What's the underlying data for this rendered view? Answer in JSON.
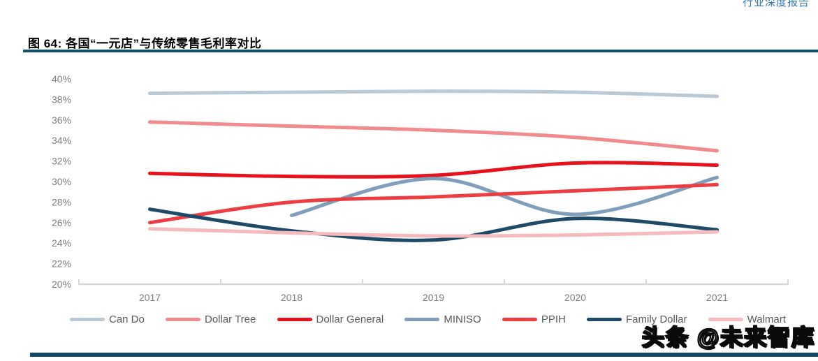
{
  "header": {
    "report_type": "行业深度报告"
  },
  "figure": {
    "title": "图 64: 各国“一元店”与传统零售毛利率对比"
  },
  "watermark": {
    "text": "头条 @未来智库"
  },
  "chart_data": {
    "type": "line",
    "line_style": "smooth",
    "x": [
      "2017",
      "2018",
      "2019",
      "2020",
      "2021"
    ],
    "x_axis_type": "category",
    "ylim": [
      20,
      40
    ],
    "ytick_step": 2,
    "ytick_suffix": "%",
    "grid": false,
    "legend_position": "bottom",
    "series": [
      {
        "name": "Can Do",
        "color": "#B9C9D5",
        "values": [
          38.6,
          38.7,
          38.8,
          38.7,
          38.3
        ]
      },
      {
        "name": "Dollar Tree",
        "color": "#F18C8E",
        "values": [
          35.8,
          35.4,
          35.0,
          34.3,
          33.0
        ]
      },
      {
        "name": "Dollar General",
        "color": "#E8131A",
        "values": [
          30.8,
          30.5,
          30.6,
          31.8,
          31.6
        ]
      },
      {
        "name": "MINISO",
        "color": "#7E9EBB",
        "values": [
          null,
          26.7,
          30.3,
          26.8,
          30.4
        ]
      },
      {
        "name": "PPIH",
        "color": "#EE3D40",
        "values": [
          26.0,
          28.0,
          28.5,
          29.1,
          29.7
        ]
      },
      {
        "name": "Family Dollar",
        "color": "#1C4A68",
        "values": [
          27.3,
          25.2,
          24.3,
          26.4,
          25.3
        ]
      },
      {
        "name": "Walmart",
        "color": "#F6B9BC",
        "values": [
          25.4,
          25.0,
          24.7,
          24.8,
          25.1
        ]
      }
    ]
  },
  "colors": {
    "divider": "#0F516F",
    "bottom_bar": "#16476B",
    "axis_text": "#7F7F7F",
    "legend_text": "#595959",
    "axis_line": "#D9D9D9",
    "header_text": "#2E74B5"
  }
}
